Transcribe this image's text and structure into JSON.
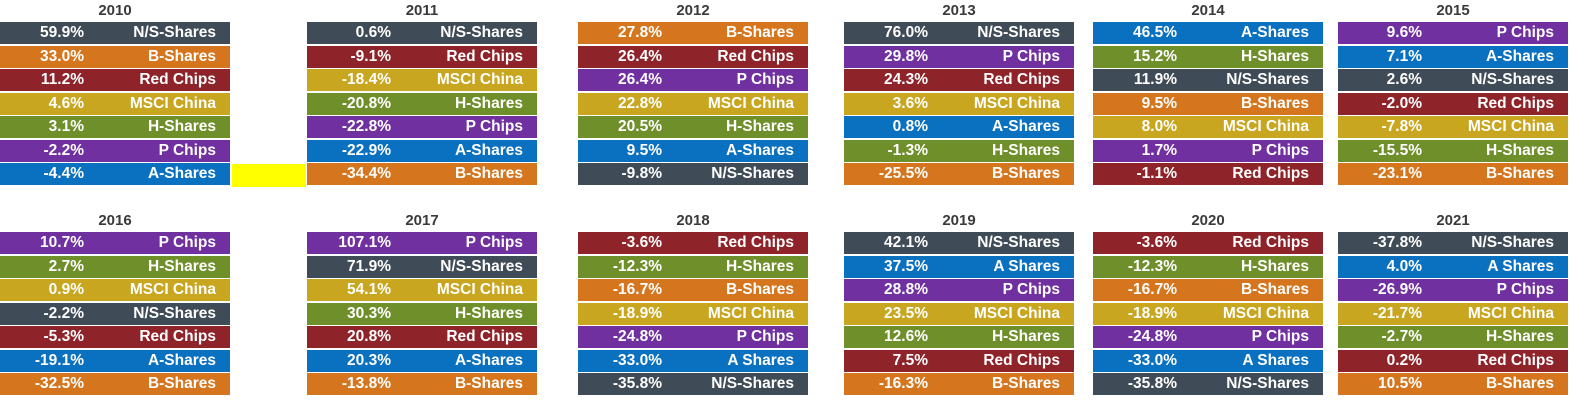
{
  "colors": {
    "N/S-Shares": "#3f4c57",
    "B-Shares": "#d5761e",
    "Red Chips": "#8e232a",
    "MSCI China": "#c9a61f",
    "H-Shares": "#6f8f2b",
    "P Chips": "#7030a0",
    "A-Shares": "#0a70c0",
    "A Shares": "#0a70c0"
  },
  "chart_data": {
    "type": "table",
    "panels": [
      {
        "year": "2010",
        "rows": [
          {
            "value": "59.9%",
            "label": "N/S-Shares"
          },
          {
            "value": "33.0%",
            "label": "B-Shares"
          },
          {
            "value": "11.2%",
            "label": "Red Chips"
          },
          {
            "value": "4.6%",
            "label": "MSCI China"
          },
          {
            "value": "3.1%",
            "label": "H-Shares"
          },
          {
            "value": "-2.2%",
            "label": "P Chips"
          },
          {
            "value": "-4.4%",
            "label": "A-Shares"
          }
        ]
      },
      {
        "year": "2011",
        "rows": [
          {
            "value": "0.6%",
            "label": "N/S-Shares"
          },
          {
            "value": "-9.1%",
            "label": "Red Chips"
          },
          {
            "value": "-18.4%",
            "label": "MSCI China"
          },
          {
            "value": "-20.8%",
            "label": "H-Shares"
          },
          {
            "value": "-22.8%",
            "label": "P Chips"
          },
          {
            "value": "-22.9%",
            "label": "A-Shares"
          },
          {
            "value": "-34.4%",
            "label": "B-Shares"
          }
        ]
      },
      {
        "year": "2012",
        "rows": [
          {
            "value": "27.8%",
            "label": "B-Shares"
          },
          {
            "value": "26.4%",
            "label": "Red Chips"
          },
          {
            "value": "26.4%",
            "label": "P Chips"
          },
          {
            "value": "22.8%",
            "label": "MSCI China"
          },
          {
            "value": "20.5%",
            "label": "H-Shares"
          },
          {
            "value": "9.5%",
            "label": "A-Shares"
          },
          {
            "value": "-9.8%",
            "label": "N/S-Shares"
          }
        ]
      },
      {
        "year": "2013",
        "rows": [
          {
            "value": "76.0%",
            "label": "N/S-Shares"
          },
          {
            "value": "29.8%",
            "label": "P Chips"
          },
          {
            "value": "24.3%",
            "label": "Red Chips"
          },
          {
            "value": "3.6%",
            "label": "MSCI China"
          },
          {
            "value": "0.8%",
            "label": "A-Shares"
          },
          {
            "value": "-1.3%",
            "label": "H-Shares"
          },
          {
            "value": "-25.5%",
            "label": "B-Shares"
          }
        ]
      },
      {
        "year": "2014",
        "rows": [
          {
            "value": "46.5%",
            "label": "A-Shares"
          },
          {
            "value": "15.2%",
            "label": "H-Shares"
          },
          {
            "value": "11.9%",
            "label": "N/S-Shares"
          },
          {
            "value": "9.5%",
            "label": "B-Shares"
          },
          {
            "value": "8.0%",
            "label": "MSCI China"
          },
          {
            "value": "1.7%",
            "label": "P Chips"
          },
          {
            "value": "-1.1%",
            "label": "Red Chips"
          }
        ]
      },
      {
        "year": "2015",
        "rows": [
          {
            "value": "9.6%",
            "label": "P Chips"
          },
          {
            "value": "7.1%",
            "label": "A-Shares"
          },
          {
            "value": "2.6%",
            "label": "N/S-Shares"
          },
          {
            "value": "-2.0%",
            "label": "Red Chips"
          },
          {
            "value": "-7.8%",
            "label": "MSCI China"
          },
          {
            "value": "-15.5%",
            "label": "H-Shares"
          },
          {
            "value": "-23.1%",
            "label": "B-Shares"
          }
        ]
      },
      {
        "year": "2016",
        "rows": [
          {
            "value": "10.7%",
            "label": "P Chips"
          },
          {
            "value": "2.7%",
            "label": "H-Shares"
          },
          {
            "value": "0.9%",
            "label": "MSCI China"
          },
          {
            "value": "-2.2%",
            "label": "N/S-Shares"
          },
          {
            "value": "-5.3%",
            "label": "Red Chips"
          },
          {
            "value": "-19.1%",
            "label": "A-Shares"
          },
          {
            "value": "-32.5%",
            "label": "B-Shares"
          }
        ]
      },
      {
        "year": "2017",
        "rows": [
          {
            "value": "107.1%",
            "label": "P Chips"
          },
          {
            "value": "71.9%",
            "label": "N/S-Shares"
          },
          {
            "value": "54.1%",
            "label": "MSCI China"
          },
          {
            "value": "30.3%",
            "label": "H-Shares"
          },
          {
            "value": "20.8%",
            "label": "Red Chips"
          },
          {
            "value": "20.3%",
            "label": "A-Shares"
          },
          {
            "value": "-13.8%",
            "label": "B-Shares"
          }
        ]
      },
      {
        "year": "2018",
        "rows": [
          {
            "value": "-3.6%",
            "label": "Red Chips"
          },
          {
            "value": "-12.3%",
            "label": "H-Shares"
          },
          {
            "value": "-16.7%",
            "label": "B-Shares"
          },
          {
            "value": "-18.9%",
            "label": "MSCI China"
          },
          {
            "value": "-24.8%",
            "label": "P Chips"
          },
          {
            "value": "-33.0%",
            "label": "A Shares"
          },
          {
            "value": "-35.8%",
            "label": "N/S-Shares"
          }
        ]
      },
      {
        "year": "2019",
        "rows": [
          {
            "value": "42.1%",
            "label": "N/S-Shares"
          },
          {
            "value": "37.5%",
            "label": "A Shares"
          },
          {
            "value": "28.8%",
            "label": "P Chips"
          },
          {
            "value": "23.5%",
            "label": "MSCI China"
          },
          {
            "value": "12.6%",
            "label": "H-Shares"
          },
          {
            "value": "7.5%",
            "label": "Red Chips"
          },
          {
            "value": "-16.3%",
            "label": "B-Shares"
          }
        ]
      },
      {
        "year": "2020",
        "rows": [
          {
            "value": "-3.6%",
            "label": "Red Chips"
          },
          {
            "value": "-12.3%",
            "label": "H-Shares"
          },
          {
            "value": "-16.7%",
            "label": "B-Shares"
          },
          {
            "value": "-18.9%",
            "label": "MSCI China"
          },
          {
            "value": "-24.8%",
            "label": "P Chips"
          },
          {
            "value": "-33.0%",
            "label": "A Shares"
          },
          {
            "value": "-35.8%",
            "label": "N/S-Shares"
          }
        ]
      },
      {
        "year": "2021",
        "rows": [
          {
            "value": "-37.8%",
            "label": "N/S-Shares"
          },
          {
            "value": "4.0%",
            "label": "A Shares"
          },
          {
            "value": "-26.9%",
            "label": "P Chips"
          },
          {
            "value": "-21.7%",
            "label": "MSCI China"
          },
          {
            "value": "-2.7%",
            "label": "H-Shares"
          },
          {
            "value": "0.2%",
            "label": "Red Chips"
          },
          {
            "value": "10.5%",
            "label": "B-Shares"
          }
        ]
      }
    ]
  }
}
